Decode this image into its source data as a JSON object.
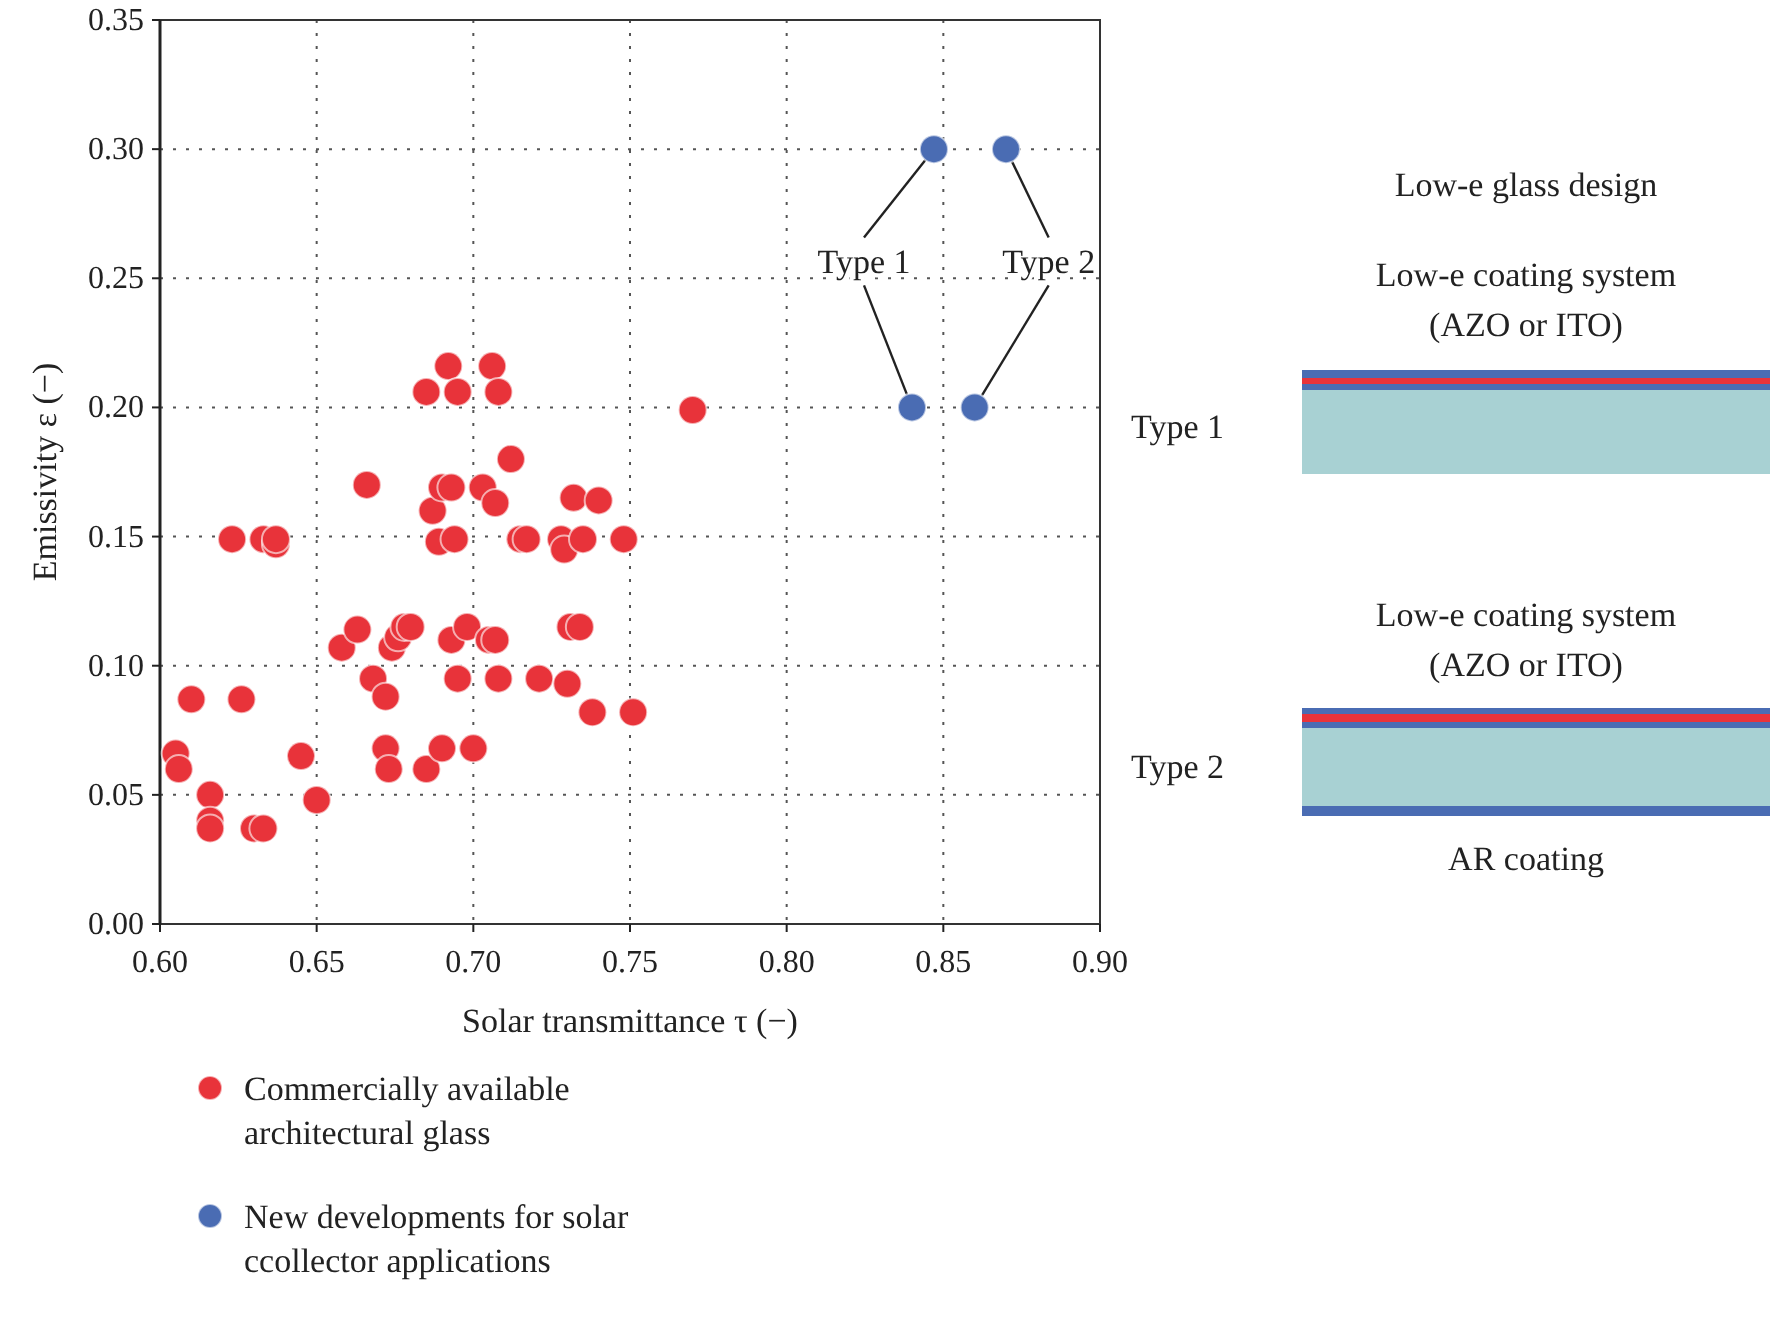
{
  "chart_data": {
    "type": "scatter",
    "xlabel": "Solar transmittance τ (−)",
    "ylabel": "Emissivity ε (−)",
    "xlim": [
      0.6,
      0.9
    ],
    "ylim": [
      0,
      0.35
    ],
    "xticks": [
      {
        "value": 0.6,
        "label": "0.60"
      },
      {
        "value": 0.65,
        "label": "0.65"
      },
      {
        "value": 0.7,
        "label": "0.70"
      },
      {
        "value": 0.75,
        "label": "0.75"
      },
      {
        "value": 0.8,
        "label": "0.80"
      },
      {
        "value": 0.85,
        "label": "0.85"
      },
      {
        "value": 0.9,
        "label": "0.90"
      }
    ],
    "yticks": [
      {
        "value": 0,
        "label": "0.00"
      },
      {
        "value": 0.05,
        "label": "0.05"
      },
      {
        "value": 0.1,
        "label": "0.10"
      },
      {
        "value": 0.15,
        "label": "0.15"
      },
      {
        "value": 0.2,
        "label": "0.20"
      },
      {
        "value": 0.25,
        "label": "0.25"
      },
      {
        "value": 0.3,
        "label": "0.30"
      },
      {
        "value": 0.35,
        "label": "0.35"
      }
    ],
    "grid": true,
    "legend": "bottom",
    "marker": "circle",
    "series": [
      {
        "name": "Commercially available architectural glass",
        "color": "#e8333a",
        "x": [
          0.605,
          0.606,
          0.61,
          0.616,
          0.616,
          0.616,
          0.623,
          0.626,
          0.63,
          0.633,
          0.633,
          0.637,
          0.637,
          0.645,
          0.65,
          0.658,
          0.663,
          0.666,
          0.668,
          0.672,
          0.672,
          0.673,
          0.674,
          0.676,
          0.678,
          0.68,
          0.685,
          0.685,
          0.687,
          0.689,
          0.69,
          0.69,
          0.692,
          0.693,
          0.693,
          0.694,
          0.695,
          0.695,
          0.698,
          0.7,
          0.703,
          0.705,
          0.706,
          0.707,
          0.707,
          0.708,
          0.708,
          0.712,
          0.715,
          0.717,
          0.721,
          0.728,
          0.729,
          0.73,
          0.731,
          0.732,
          0.734,
          0.735,
          0.738,
          0.74,
          0.748,
          0.751,
          0.77
        ],
        "values": [
          0.066,
          0.06,
          0.087,
          0.05,
          0.04,
          0.037,
          0.149,
          0.087,
          0.037,
          0.037,
          0.149,
          0.147,
          0.149,
          0.065,
          0.048,
          0.107,
          0.114,
          0.17,
          0.095,
          0.088,
          0.068,
          0.06,
          0.107,
          0.111,
          0.115,
          0.115,
          0.206,
          0.06,
          0.16,
          0.148,
          0.169,
          0.068,
          0.216,
          0.169,
          0.11,
          0.149,
          0.095,
          0.206,
          0.115,
          0.068,
          0.169,
          0.11,
          0.216,
          0.11,
          0.163,
          0.206,
          0.095,
          0.18,
          0.149,
          0.149,
          0.095,
          0.149,
          0.145,
          0.093,
          0.115,
          0.165,
          0.115,
          0.149,
          0.082,
          0.164,
          0.149,
          0.082,
          0.199
        ]
      },
      {
        "name": "New developments for solar ccollector applications",
        "color": "#4a6cb3",
        "x": [
          0.847,
          0.87,
          0.84,
          0.86
        ],
        "values": [
          0.3,
          0.3,
          0.2,
          0.2
        ]
      }
    ],
    "annotations": [
      {
        "text": "Type 1",
        "x": 0.84,
        "y": 0.2
      },
      {
        "text": "Type 2",
        "x": 0.86,
        "y": 0.2
      },
      "Low-e glass design",
      "Low-e coating system",
      "(AZO or ITO)",
      "Type 1",
      "Low-e coating system",
      "(AZO or ITO)",
      "Type 2",
      "AR coating"
    ]
  }
}
